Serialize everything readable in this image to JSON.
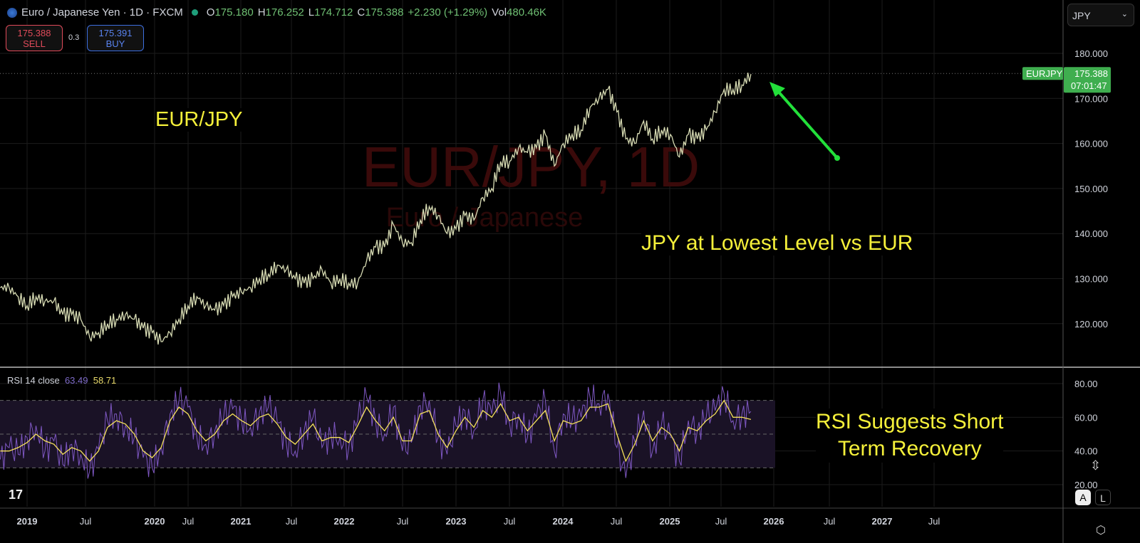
{
  "header": {
    "symbol_title": "Euro / Japanese Yen · 1D · FXCM",
    "open_label": "O",
    "open": "175.180",
    "high_label": "H",
    "high": "176.252",
    "low_label": "L",
    "low": "174.712",
    "close_label": "C",
    "close": "175.388",
    "change": "+2.230 (+1.29%)",
    "vol_label": "Vol",
    "volume": "480.46K"
  },
  "trade": {
    "sell_price": "175.388",
    "sell_label": "SELL",
    "spread": "0.3",
    "buy_price": "175.391",
    "buy_label": "BUY"
  },
  "currency_select": "JPY",
  "price_tag": {
    "symbol": "EURJPY",
    "price": "175.388",
    "countdown": "07:01:47"
  },
  "watermark": {
    "line1": "EUR/JPY, 1D",
    "line2": "Euro / Japanese"
  },
  "annotations": {
    "title": "EUR/JPY",
    "price_note": "JPY at Lowest Level vs EUR",
    "rsi_note_1": "RSI Suggests Short",
    "rsi_note_2": "Term Recovery"
  },
  "rsi": {
    "label": "RSI 14 close",
    "rsi_value": "63.49",
    "ma_value": "58.71"
  },
  "scale_buttons": {
    "auto": "A",
    "log": "L"
  },
  "colors": {
    "price": "#d8dcb4",
    "rsi": "#7e57c2",
    "rsi_ma": "#f5e15a",
    "accent_green": "#3fae4f",
    "arrow": "#22e03a",
    "annotation": "#f5f03a"
  },
  "chart_data": [
    {
      "type": "line",
      "title": "EUR/JPY, 1D",
      "x_start": "2018-10",
      "x_step": "month",
      "y_ticks": [
        "120.000",
        "130.000",
        "140.000",
        "150.000",
        "160.000",
        "170.000",
        "180.000"
      ],
      "ylim": [
        112,
        183
      ],
      "x_ticks": [
        "2019",
        "Jul",
        "2020",
        "Jul",
        "2021",
        "Jul",
        "2022",
        "Jul",
        "2023",
        "Jul",
        "2024",
        "Jul",
        "2025",
        "Jul",
        "2026",
        "Jul",
        "2027",
        "Jul"
      ],
      "values": [
        128,
        128,
        126,
        124,
        126,
        125,
        125,
        122,
        122,
        121,
        117,
        118,
        120,
        121,
        122,
        121,
        119,
        118,
        116,
        118,
        121,
        124,
        126,
        124,
        123,
        124,
        126,
        127,
        128,
        130,
        131,
        133,
        132,
        130,
        129,
        130,
        132,
        129,
        130,
        129,
        129,
        134,
        137,
        137,
        142,
        138,
        138,
        143,
        146,
        144,
        140,
        141,
        144,
        143,
        148,
        150,
        156,
        156,
        159,
        158,
        159,
        162,
        155,
        160,
        162,
        163,
        168,
        170,
        172,
        167,
        161,
        160,
        165,
        161,
        163,
        162,
        157,
        162,
        161,
        163,
        167,
        172,
        172,
        173,
        175.4
      ]
    },
    {
      "type": "line",
      "title": "RSI 14 close",
      "ylim": [
        10,
        87
      ],
      "y_ticks": [
        "20.00",
        "40.00",
        "60.00",
        "80.00"
      ],
      "bands": [
        30,
        50,
        70
      ],
      "series": [
        {
          "name": "RSI",
          "values": [
            35,
            42,
            38,
            48,
            55,
            40,
            46,
            32,
            44,
            38,
            28,
            41,
            58,
            62,
            55,
            48,
            36,
            30,
            42,
            62,
            70,
            66,
            48,
            44,
            52,
            60,
            65,
            58,
            54,
            63,
            66,
            57,
            45,
            40,
            52,
            60,
            42,
            50,
            48,
            42,
            58,
            72,
            58,
            50,
            66,
            40,
            45,
            67,
            70,
            48,
            38,
            55,
            64,
            52,
            70,
            62,
            74,
            56,
            62,
            48,
            60,
            70,
            40,
            62,
            58,
            60,
            72,
            68,
            74,
            42,
            24,
            46,
            64,
            40,
            56,
            48,
            34,
            58,
            52,
            60,
            64,
            74,
            58,
            62,
            63.5
          ]
        },
        {
          "name": "MA",
          "values": [
            40,
            40,
            42,
            45,
            50,
            46,
            44,
            38,
            42,
            40,
            34,
            40,
            54,
            58,
            56,
            50,
            40,
            36,
            42,
            58,
            66,
            62,
            52,
            46,
            50,
            58,
            62,
            58,
            55,
            60,
            62,
            56,
            48,
            44,
            50,
            56,
            46,
            48,
            48,
            45,
            55,
            66,
            58,
            52,
            60,
            46,
            46,
            62,
            64,
            50,
            42,
            52,
            60,
            54,
            64,
            60,
            68,
            58,
            60,
            52,
            58,
            64,
            46,
            58,
            56,
            58,
            66,
            66,
            68,
            50,
            34,
            44,
            58,
            46,
            54,
            50,
            40,
            54,
            52,
            58,
            62,
            70,
            60,
            60,
            58.7
          ]
        }
      ]
    }
  ]
}
